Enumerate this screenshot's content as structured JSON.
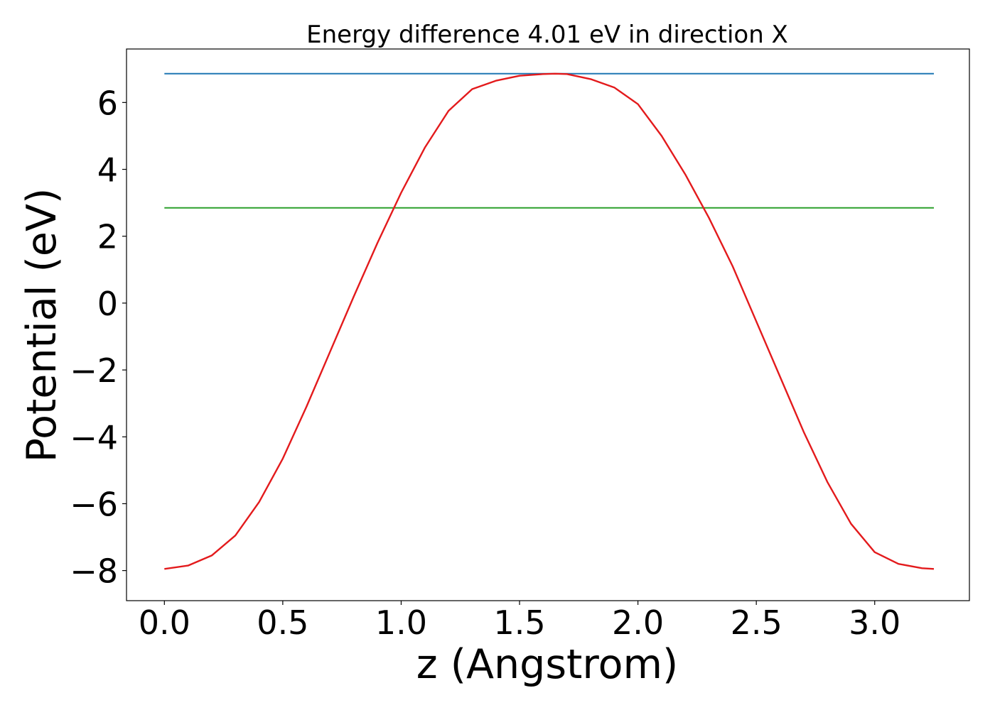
{
  "chart_data": {
    "type": "line",
    "title": "Energy difference 4.01 eV in direction X",
    "xlabel": "z (Angstrom)",
    "ylabel": "Potential (eV)",
    "xlim": [
      -0.16,
      3.4
    ],
    "ylim": [
      -8.9,
      7.6
    ],
    "x_ticks": [
      0.0,
      0.5,
      1.0,
      1.5,
      2.0,
      2.5,
      3.0
    ],
    "x_tick_labels": [
      "0.0",
      "0.5",
      "1.0",
      "1.5",
      "2.0",
      "2.5",
      "3.0"
    ],
    "y_ticks": [
      -8,
      -6,
      -4,
      -2,
      0,
      2,
      4,
      6
    ],
    "y_tick_labels": [
      "−8",
      "−6",
      "−4",
      "−2",
      "0",
      "2",
      "4",
      "6"
    ],
    "grid": false,
    "series": [
      {
        "color": "#1f77b4",
        "x": [
          0.0,
          3.25
        ],
        "y": [
          6.86,
          6.86
        ]
      },
      {
        "color": "#2ca02c",
        "x": [
          0.0,
          3.25
        ],
        "y": [
          2.85,
          2.85
        ]
      },
      {
        "color": "#e31a1c",
        "x": [
          0.0,
          0.1,
          0.2,
          0.3,
          0.4,
          0.5,
          0.6,
          0.7,
          0.8,
          0.9,
          1.0,
          1.1,
          1.2,
          1.3,
          1.4,
          1.5,
          1.6,
          1.65,
          1.7,
          1.8,
          1.9,
          2.0,
          2.1,
          2.2,
          2.3,
          2.4,
          2.5,
          2.6,
          2.7,
          2.8,
          2.9,
          3.0,
          3.1,
          3.2,
          3.25
        ],
        "y": [
          -7.95,
          -7.85,
          -7.55,
          -6.95,
          -5.95,
          -4.65,
          -3.1,
          -1.45,
          0.2,
          1.8,
          3.3,
          4.65,
          5.75,
          6.4,
          6.65,
          6.8,
          6.85,
          6.86,
          6.85,
          6.7,
          6.45,
          5.95,
          5.0,
          3.85,
          2.55,
          1.1,
          -0.55,
          -2.2,
          -3.85,
          -5.35,
          -6.6,
          -7.45,
          -7.8,
          -7.93,
          -7.95
        ]
      }
    ]
  }
}
